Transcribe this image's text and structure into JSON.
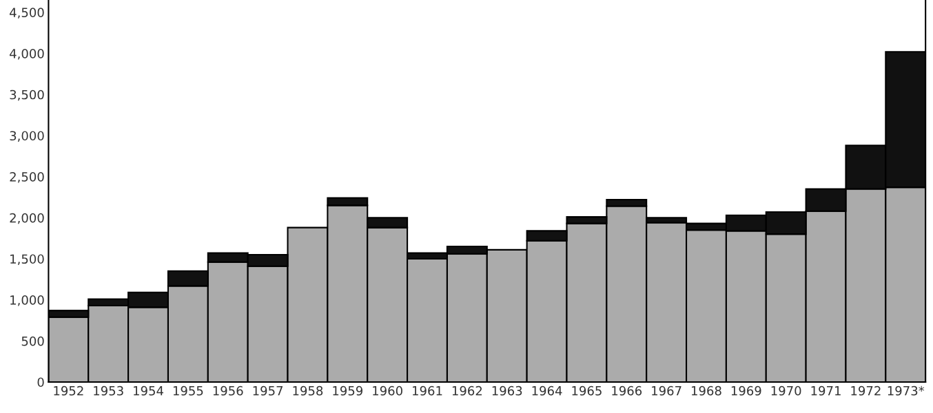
{
  "chart_data": {
    "type": "bar",
    "stacked": true,
    "categories": [
      "1952",
      "1953",
      "1954",
      "1955",
      "1956",
      "1957",
      "1958",
      "1959",
      "1960",
      "1961",
      "1962",
      "1963",
      "1964",
      "1965",
      "1966",
      "1967",
      "1968",
      "1969",
      "1970",
      "1971",
      "1972",
      "1973*"
    ],
    "series": [
      {
        "color": "#ababab",
        "values": [
          790,
          930,
          910,
          1170,
          1460,
          1410,
          1880,
          2150,
          1880,
          1500,
          1560,
          1610,
          1720,
          1930,
          2140,
          1940,
          1850,
          1840,
          1800,
          2080,
          2350,
          2370
        ]
      },
      {
        "color": "#111111",
        "values": [
          80,
          80,
          180,
          180,
          110,
          140,
          null,
          90,
          120,
          70,
          90,
          null,
          120,
          80,
          80,
          60,
          80,
          190,
          270,
          270,
          530,
          1650
        ]
      }
    ],
    "ylim": [
      0,
      4650
    ],
    "yticks": [
      0,
      500,
      {
        "value": 1000,
        "label": "1,000"
      },
      {
        "value": 1500,
        "label": "1,500"
      },
      {
        "value": 2000,
        "label": "2,000"
      },
      {
        "value": 2500,
        "label": "2,500"
      },
      {
        "value": 3000,
        "label": "3,000"
      },
      {
        "value": 3500,
        "label": "3,500"
      },
      {
        "value": 4000,
        "label": "4,000"
      },
      {
        "value": 4500,
        "label": "4,500"
      }
    ],
    "grid": false
  }
}
